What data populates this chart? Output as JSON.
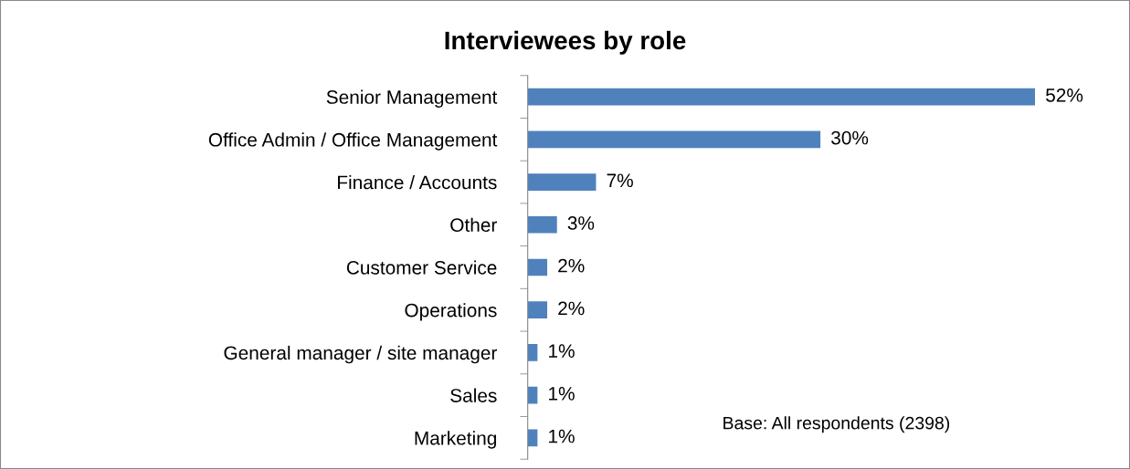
{
  "chart_data": {
    "type": "bar",
    "orientation": "horizontal",
    "title": "Interviewees by role",
    "categories": [
      "Senior Management",
      "Office Admin / Office Management",
      "Finance / Accounts",
      "Other",
      "Customer Service",
      "Operations",
      "General manager / site manager",
      "Sales",
      "Marketing"
    ],
    "values": [
      52,
      30,
      7,
      3,
      2,
      2,
      1,
      1,
      1
    ],
    "value_labels": [
      "52%",
      "30%",
      "7%",
      "3%",
      "2%",
      "2%",
      "1%",
      "1%",
      "1%"
    ],
    "color": "#4f81bd",
    "tick_labels": "y",
    "grid": false,
    "legend": false,
    "annotations": [
      "Base: All respondents (2398)"
    ]
  }
}
